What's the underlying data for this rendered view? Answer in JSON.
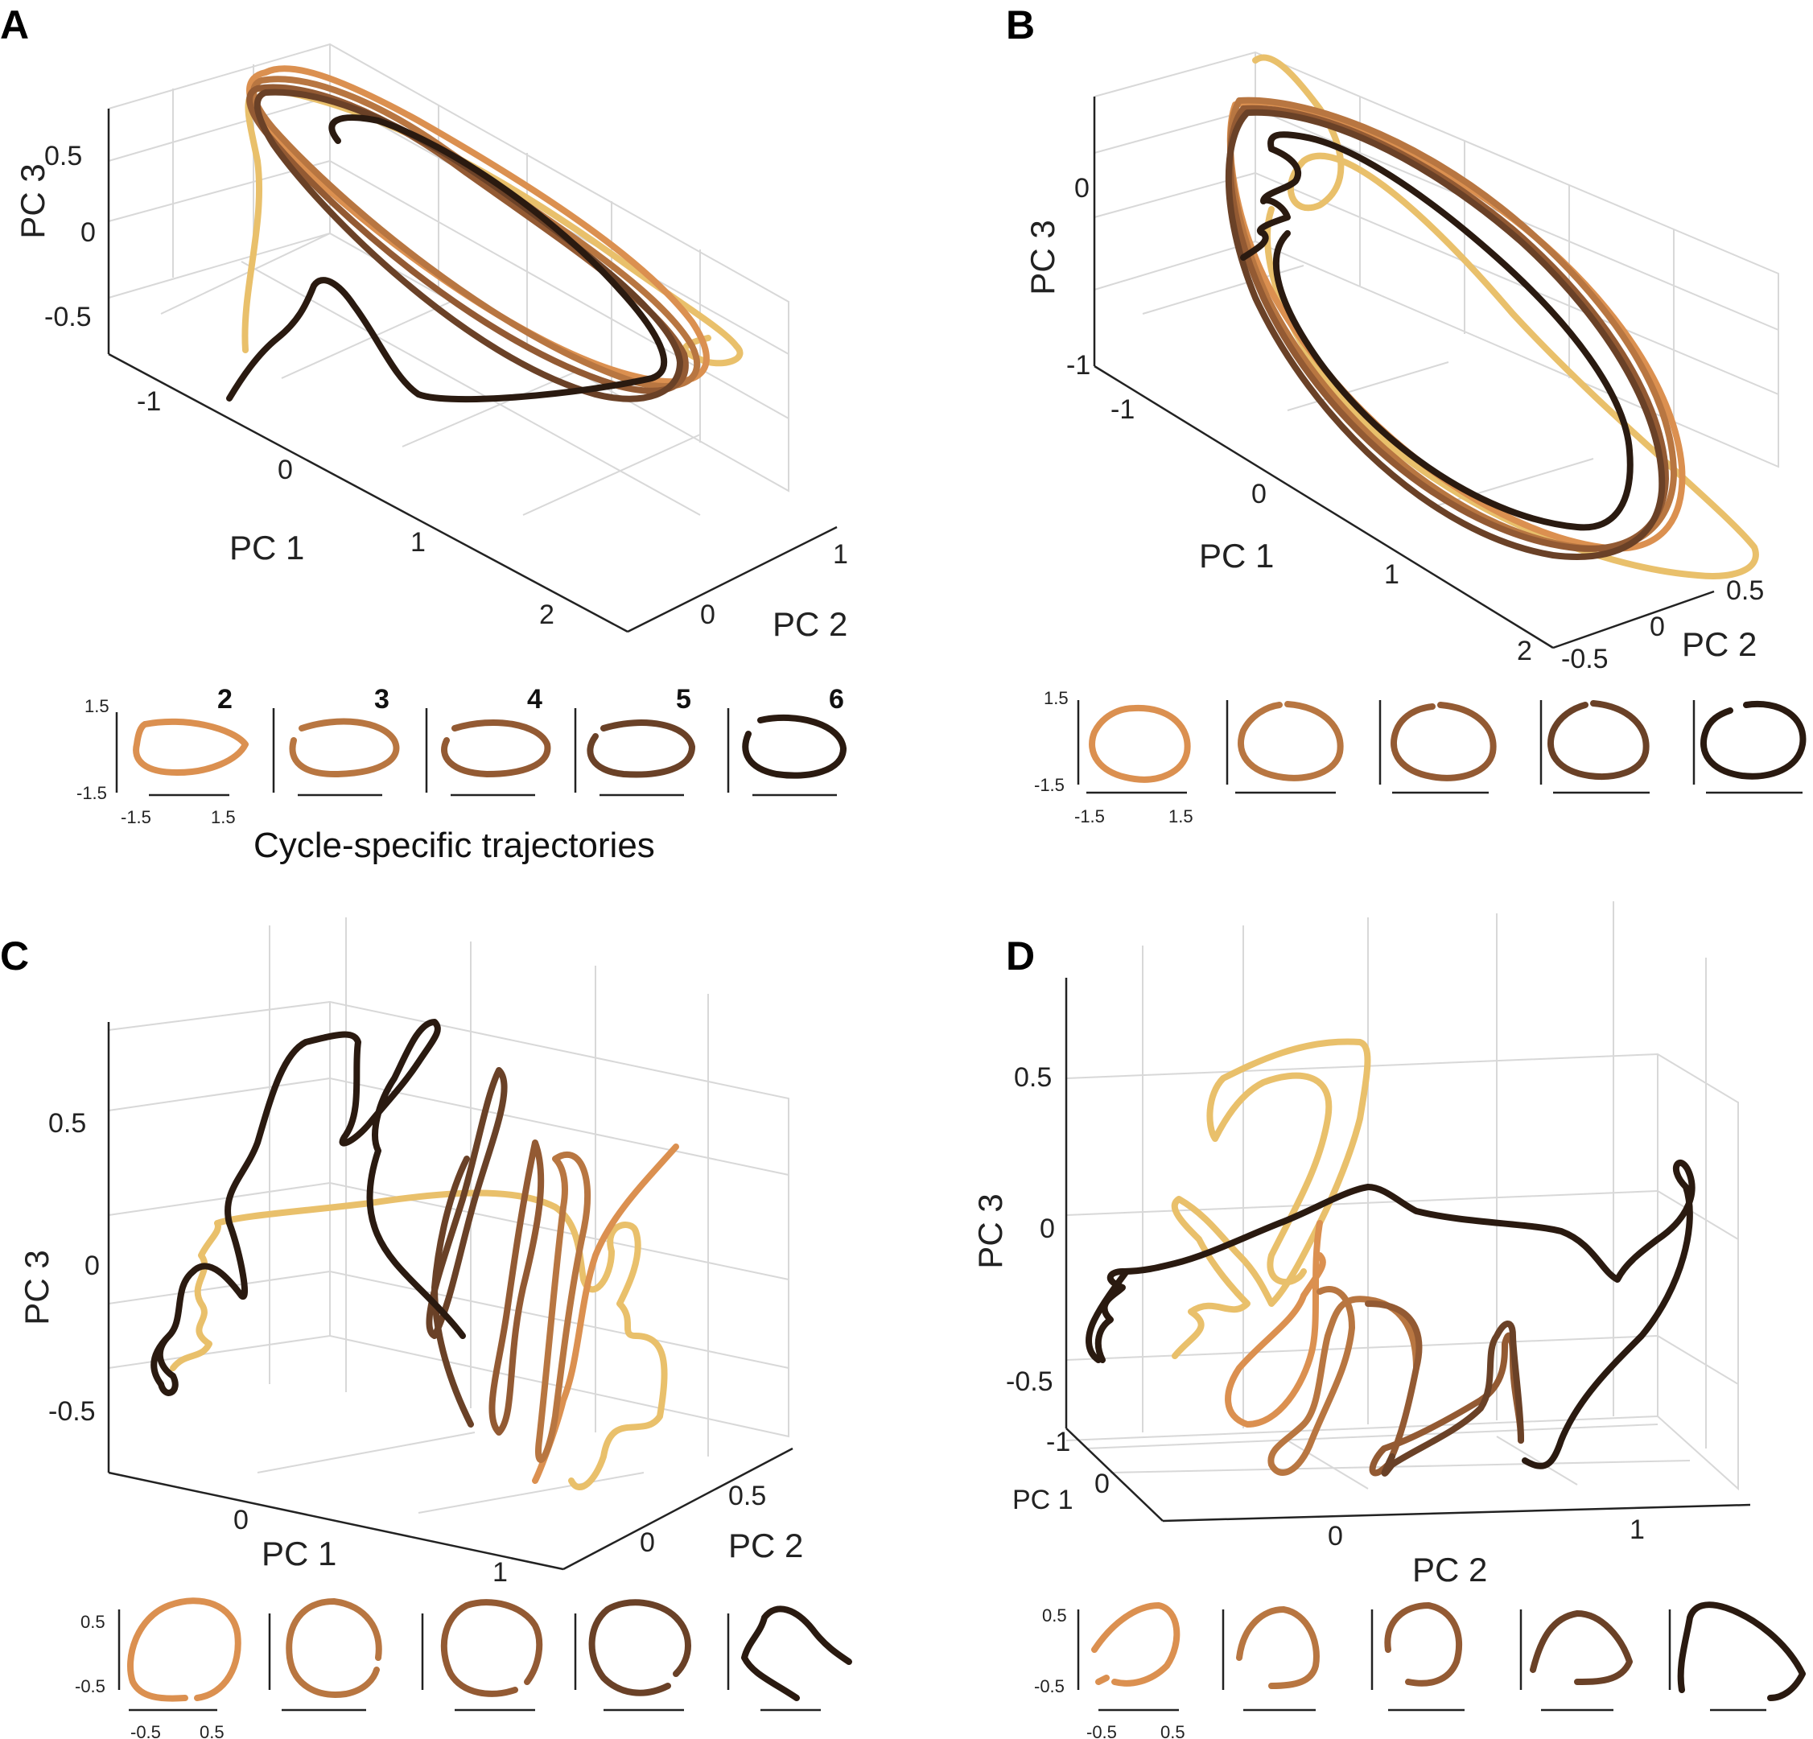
{
  "chart_data": [
    {
      "panel": "A",
      "type": "line",
      "projection": "3d",
      "axes": {
        "x": {
          "label": "PC 1",
          "ticks": [
            "-1",
            "0",
            "1",
            "2"
          ]
        },
        "y": {
          "label": "PC 2",
          "ticks": [
            "0",
            "1"
          ]
        },
        "z": {
          "label": "PC 3",
          "ticks": [
            "-0.5",
            "0",
            "0.5"
          ]
        }
      },
      "grid": true,
      "series": [
        {
          "cycle": 1,
          "color": "#e9c06b"
        },
        {
          "cycle": 2,
          "color": "#db9050"
        },
        {
          "cycle": 3,
          "color": "#b87641"
        },
        {
          "cycle": 4,
          "color": "#935a33"
        },
        {
          "cycle": 5,
          "color": "#6a4127"
        },
        {
          "cycle": 6,
          "color": "#2a1a10"
        }
      ],
      "insets": {
        "caption": "Cycle-specific trajectories",
        "cycle_labels": [
          "2",
          "3",
          "4",
          "5",
          "6"
        ],
        "x_ticks": [
          "-1.5",
          "1.5"
        ],
        "y_ticks": [
          "1.5",
          "-1.5"
        ]
      }
    },
    {
      "panel": "B",
      "type": "line",
      "projection": "3d",
      "axes": {
        "x": {
          "label": "PC 1",
          "ticks": [
            "-1",
            "0",
            "1",
            "2"
          ]
        },
        "y": {
          "label": "PC 2",
          "ticks": [
            "-0.5",
            "0",
            "0.5"
          ]
        },
        "z": {
          "label": "PC 3",
          "ticks": [
            "0",
            "-1"
          ]
        }
      },
      "grid": true,
      "insets": {
        "x_ticks": [
          "-1.5",
          "1.5"
        ],
        "y_ticks": [
          "1.5",
          "-1.5"
        ]
      }
    },
    {
      "panel": "C",
      "type": "line",
      "projection": "3d",
      "axes": {
        "x": {
          "label": "PC 1",
          "ticks": [
            "0",
            "1"
          ]
        },
        "y": {
          "label": "PC 2",
          "ticks": [
            "0",
            "0.5"
          ]
        },
        "z": {
          "label": "PC 3",
          "ticks": [
            "-0.5",
            "0",
            "0.5"
          ]
        }
      },
      "grid": true,
      "insets": {
        "x_ticks": [
          "-0.5",
          "0.5"
        ],
        "y_ticks": [
          "0.5",
          "-0.5"
        ]
      }
    },
    {
      "panel": "D",
      "type": "line",
      "projection": "3d",
      "axes": {
        "x": {
          "label": "PC 1",
          "ticks": [
            "-1",
            "0"
          ]
        },
        "y": {
          "label": "PC 2",
          "ticks": [
            "0",
            "1"
          ]
        },
        "z": {
          "label": "PC 3",
          "ticks": [
            "-0.5",
            "0",
            "0.5"
          ]
        }
      },
      "grid": true,
      "insets": {
        "x_ticks": [
          "-0.5",
          "0.5"
        ],
        "y_ticks": [
          "0.5",
          "-0.5"
        ]
      }
    }
  ]
}
